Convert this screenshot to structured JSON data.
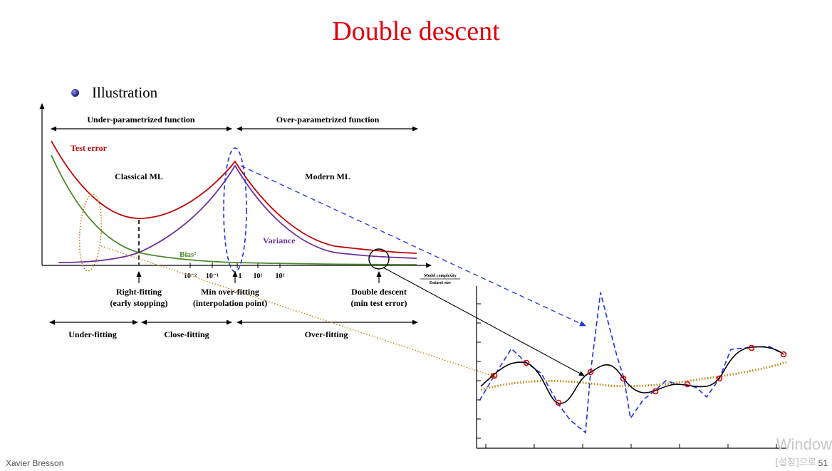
{
  "slide": {
    "title": "Double descent",
    "bullet": "Illustration",
    "author": "Xavier Bresson",
    "page_number": "51",
    "watermark": "Window",
    "watermark_sub": "[설정]으로"
  },
  "colors": {
    "title": "#e0000a",
    "test_error": "#c00000",
    "variance": "#7030a0",
    "bias": "#4e8a2c",
    "dashed_blue": "#1f2fe8",
    "dotted_gold": "#b8860b",
    "marker": "#e00000"
  },
  "figure": {
    "top_regions": [
      "Under-parametrized function",
      "Over-parametrized function"
    ],
    "regime_labels": [
      "Classical ML",
      "Modern ML"
    ],
    "curve_labels": {
      "test_error": "Test error",
      "variance": "Variance",
      "bias": "Bias²"
    },
    "ticks": [
      "10⁻²",
      "10⁻¹",
      "1",
      "10¹",
      "10²"
    ],
    "axis_label_numerator": "Model complexity",
    "axis_label_denominator": "Dataset size",
    "points": [
      {
        "line1": "Right-fitting",
        "line2": "(early stopping)"
      },
      {
        "line1": "Min over-fitting",
        "line2": "(interpolation point)"
      },
      {
        "line1": "Double descent",
        "line2": "(min test error)"
      }
    ],
    "bottom_regions": [
      "Under-fitting",
      "Close-fitting",
      "Over-fitting"
    ]
  }
}
